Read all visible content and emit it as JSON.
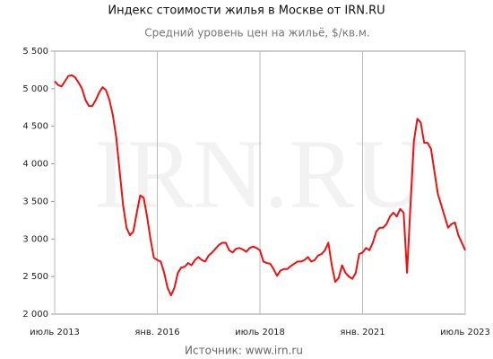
{
  "chart_data": {
    "type": "line",
    "title": "Индекс стоимости жилья в Москве от IRN.RU",
    "subtitle": "Средний уровень цен на жильё, $/кв.м.",
    "watermark": "IRN.RU",
    "source": "Источник: www.irn.ru",
    "grid": "x",
    "x": [
      "2013-07",
      "2013-08",
      "2013-09",
      "2013-10",
      "2013-11",
      "2013-12",
      "2014-01",
      "2014-02",
      "2014-03",
      "2014-04",
      "2014-05",
      "2014-06",
      "2014-07",
      "2014-08",
      "2014-09",
      "2014-10",
      "2014-11",
      "2014-12",
      "2015-01",
      "2015-02",
      "2015-03",
      "2015-04",
      "2015-05",
      "2015-06",
      "2015-07",
      "2015-08",
      "2015-09",
      "2015-10",
      "2015-11",
      "2015-12",
      "2016-01",
      "2016-02",
      "2016-03",
      "2016-04",
      "2016-05",
      "2016-06",
      "2016-07",
      "2016-08",
      "2016-09",
      "2016-10",
      "2016-11",
      "2016-12",
      "2017-01",
      "2017-02",
      "2017-03",
      "2017-04",
      "2017-05",
      "2017-06",
      "2017-07",
      "2017-08",
      "2017-09",
      "2017-10",
      "2017-11",
      "2017-12",
      "2018-01",
      "2018-02",
      "2018-03",
      "2018-04",
      "2018-05",
      "2018-06",
      "2018-07",
      "2018-08",
      "2018-09",
      "2018-10",
      "2018-11",
      "2018-12",
      "2019-01",
      "2019-02",
      "2019-03",
      "2019-04",
      "2019-05",
      "2019-06",
      "2019-07",
      "2019-08",
      "2019-09",
      "2019-10",
      "2019-11",
      "2019-12",
      "2020-01",
      "2020-02",
      "2020-03",
      "2020-04",
      "2020-05",
      "2020-06",
      "2020-07",
      "2020-08",
      "2020-09",
      "2020-10",
      "2020-11",
      "2020-12",
      "2021-01",
      "2021-02",
      "2021-03",
      "2021-04",
      "2021-05",
      "2021-06",
      "2021-07",
      "2021-08",
      "2021-09",
      "2021-10",
      "2021-11",
      "2021-12",
      "2022-01",
      "2022-02",
      "2022-03",
      "2022-04",
      "2022-05",
      "2022-06",
      "2022-07",
      "2022-08",
      "2022-09",
      "2022-10",
      "2022-11",
      "2022-12",
      "2023-01",
      "2023-02",
      "2023-03",
      "2023-04",
      "2023-05",
      "2023-06",
      "2023-07"
    ],
    "series": [
      {
        "color": "#ee1111",
        "values": [
          5100,
          5050,
          5030,
          5100,
          5170,
          5180,
          5150,
          5080,
          5000,
          4850,
          4770,
          4770,
          4850,
          4950,
          5020,
          4980,
          4850,
          4650,
          4350,
          3900,
          3450,
          3150,
          3050,
          3100,
          3350,
          3580,
          3550,
          3300,
          3000,
          2750,
          2720,
          2700,
          2550,
          2350,
          2250,
          2350,
          2550,
          2620,
          2630,
          2680,
          2650,
          2720,
          2760,
          2720,
          2700,
          2780,
          2820,
          2870,
          2920,
          2950,
          2950,
          2850,
          2820,
          2870,
          2880,
          2860,
          2830,
          2880,
          2900,
          2880,
          2850,
          2700,
          2680,
          2670,
          2600,
          2510,
          2580,
          2600,
          2600,
          2640,
          2670,
          2700,
          2700,
          2720,
          2760,
          2700,
          2720,
          2780,
          2800,
          2850,
          2950,
          2650,
          2430,
          2480,
          2650,
          2550,
          2500,
          2470,
          2550,
          2800,
          2820,
          2880,
          2850,
          2950,
          3100,
          3150,
          3150,
          3200,
          3300,
          3350,
          3300,
          3400,
          3350,
          2550,
          3450,
          4300,
          4600,
          4550,
          4280,
          4280,
          4200,
          3900,
          3600,
          3450,
          3300,
          3150,
          3200,
          3220,
          3050,
          2950,
          2850
        ]
      }
    ],
    "xlim": [
      "2013-07",
      "2023-07"
    ],
    "xticks": [
      {
        "value": "2013-07",
        "label": "июль 2013"
      },
      {
        "value": "2016-01",
        "label": "янв. 2016"
      },
      {
        "value": "2018-07",
        "label": "июль 2018"
      },
      {
        "value": "2021-01",
        "label": "янв. 2021"
      },
      {
        "value": "2023-07",
        "label": "июль 2023"
      }
    ],
    "ylim": [
      2000,
      5500
    ],
    "yticks": [
      {
        "value": 2000,
        "label": "2 000"
      },
      {
        "value": 2500,
        "label": "2 500"
      },
      {
        "value": 3000,
        "label": "3 000"
      },
      {
        "value": 3500,
        "label": "3 500"
      },
      {
        "value": 4000,
        "label": "4 000"
      },
      {
        "value": 4500,
        "label": "4 500"
      },
      {
        "value": 5000,
        "label": "5 000"
      },
      {
        "value": 5500,
        "label": "5 500"
      }
    ]
  }
}
